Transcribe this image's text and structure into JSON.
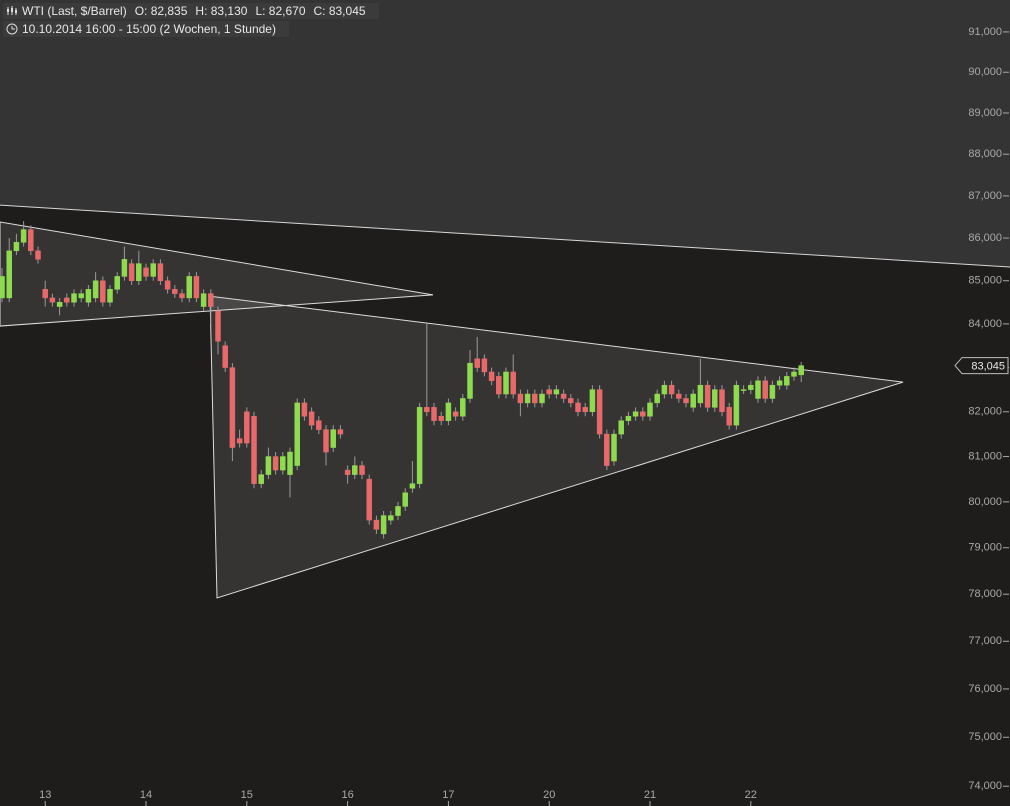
{
  "header": {
    "instrument": "WTI (Last, $/Barrel)",
    "fields": [
      "O: 82,835",
      "H: 83,130",
      "L: 82,670",
      "C: 83,045"
    ],
    "period": "10.10.2014 16:00 - 15:00 (2 Wochen, 1 Stunde)"
  },
  "chart_data": {
    "type": "candlestick",
    "log_y": true,
    "categories": [
      null,
      null,
      null,
      null,
      null,
      null,
      null,
      null,
      null,
      null,
      null,
      null,
      null,
      null,
      null,
      null,
      null,
      null,
      null,
      null,
      null,
      null,
      null,
      null,
      null,
      null,
      null,
      null,
      null,
      null,
      null,
      null,
      null,
      null,
      null,
      null,
      null,
      null,
      null,
      null,
      null,
      null,
      null,
      null,
      null,
      null,
      null,
      null,
      null,
      null,
      null,
      null,
      null,
      null,
      null,
      null,
      null,
      null,
      null,
      null,
      null,
      null,
      null,
      null,
      null,
      null,
      null,
      null,
      null,
      null,
      null,
      null,
      null,
      null,
      null,
      null,
      null,
      null,
      null,
      null,
      null,
      null,
      null,
      null,
      null,
      null,
      null,
      null,
      null,
      null,
      null,
      null,
      null,
      null,
      null,
      null,
      null,
      null,
      null,
      null,
      null,
      null,
      null,
      null,
      null,
      null,
      null,
      null,
      null,
      null,
      null,
      null
    ],
    "open": [
      84.6,
      84.6,
      85.7,
      85.9,
      86.2,
      85.7,
      84.8,
      84.6,
      84.4,
      84.6,
      84.5,
      84.6,
      84.5,
      84.6,
      85.0,
      84.5,
      84.8,
      85.1,
      85.4,
      85.0,
      85.3,
      85.1,
      85.4,
      85.0,
      84.8,
      84.7,
      84.6,
      85.1,
      84.4,
      84.7,
      84.3,
      83.5,
      83.0,
      81.4,
      82.0,
      81.9,
      80.4,
      80.6,
      81.0,
      80.7,
      80.6,
      80.8,
      82.2,
      82.0,
      81.8,
      81.6,
      81.2,
      81.6,
      80.7,
      80.6,
      80.8,
      80.5,
      79.6,
      79.3,
      79.6,
      79.7,
      79.9,
      80.3,
      80.4,
      82.1,
      82.1,
      81.9,
      81.8,
      82.0,
      81.9,
      82.3,
      83.2,
      83.2,
      82.9,
      82.8,
      82.4,
      82.9,
      82.4,
      82.2,
      82.4,
      82.2,
      82.5,
      82.4,
      82.4,
      82.3,
      82.2,
      82.1,
      82.0,
      82.5,
      81.5,
      80.9,
      81.5,
      81.8,
      81.9,
      82.0,
      81.9,
      82.2,
      82.4,
      82.6,
      82.4,
      82.3,
      82.1,
      82.2,
      82.6,
      82.1,
      82.5,
      82.1,
      81.7,
      82.5,
      82.5,
      82.3,
      82.7,
      82.3,
      82.6,
      82.6,
      82.8,
      82.835
    ],
    "high": [
      85.3,
      86.0,
      86.1,
      86.4,
      86.3,
      85.8,
      85.0,
      84.7,
      84.6,
      84.7,
      84.8,
      84.8,
      84.9,
      85.2,
      85.1,
      84.9,
      85.2,
      85.8,
      85.5,
      85.7,
      85.4,
      85.5,
      85.5,
      85.1,
      84.9,
      84.8,
      85.2,
      85.2,
      84.8,
      84.8,
      84.4,
      83.6,
      83.1,
      81.6,
      82.1,
      82.0,
      80.7,
      81.2,
      81.1,
      81.1,
      81.2,
      82.3,
      82.3,
      82.1,
      81.9,
      81.7,
      81.7,
      81.7,
      80.8,
      81.0,
      80.9,
      80.6,
      79.7,
      79.8,
      79.8,
      80.0,
      80.3,
      80.9,
      82.2,
      84.0,
      82.2,
      82.0,
      82.3,
      82.1,
      82.4,
      83.4,
      83.7,
      83.3,
      83.0,
      82.9,
      83.0,
      83.3,
      82.5,
      82.5,
      82.5,
      82.5,
      82.6,
      82.6,
      82.5,
      82.4,
      82.3,
      82.2,
      82.6,
      82.6,
      81.6,
      81.6,
      81.9,
      82.0,
      82.1,
      82.1,
      82.3,
      82.5,
      82.7,
      82.7,
      82.5,
      82.4,
      82.5,
      83.2,
      82.7,
      82.6,
      82.6,
      82.2,
      82.7,
      82.6,
      82.7,
      82.8,
      82.8,
      82.7,
      82.8,
      82.9,
      83.0,
      83.13
    ],
    "low": [
      84.5,
      84.5,
      85.6,
      85.8,
      85.6,
      85.4,
      84.4,
      84.4,
      84.2,
      84.4,
      84.4,
      84.5,
      84.4,
      84.5,
      84.4,
      84.4,
      84.7,
      85.0,
      84.9,
      84.9,
      85.0,
      85.0,
      84.9,
      84.7,
      84.6,
      84.5,
      84.5,
      84.5,
      84.3,
      84.0,
      83.3,
      82.9,
      80.9,
      81.2,
      81.2,
      80.3,
      80.3,
      80.5,
      80.6,
      80.6,
      80.1,
      80.7,
      81.8,
      81.6,
      81.5,
      80.8,
      81.1,
      81.4,
      80.4,
      80.5,
      80.5,
      79.5,
      79.3,
      79.2,
      79.5,
      79.6,
      79.8,
      80.2,
      80.3,
      81.9,
      81.7,
      81.7,
      81.7,
      81.8,
      81.8,
      82.2,
      82.9,
      82.8,
      82.6,
      82.3,
      82.3,
      82.3,
      81.9,
      82.1,
      82.1,
      82.1,
      82.3,
      82.3,
      82.2,
      82.1,
      81.9,
      81.9,
      81.9,
      81.4,
      80.7,
      80.8,
      81.4,
      81.7,
      81.8,
      81.8,
      81.8,
      82.1,
      82.3,
      82.3,
      82.2,
      82.1,
      82.0,
      82.1,
      82.0,
      82.0,
      81.9,
      81.6,
      81.6,
      82.4,
      82.4,
      82.2,
      82.2,
      82.2,
      82.5,
      82.5,
      82.7,
      82.67
    ],
    "close": [
      85.1,
      85.7,
      85.9,
      86.2,
      85.7,
      85.5,
      84.6,
      84.5,
      84.5,
      84.5,
      84.7,
      84.7,
      84.8,
      85.0,
      84.5,
      84.8,
      85.1,
      85.5,
      85.0,
      85.4,
      85.1,
      85.4,
      85.0,
      84.8,
      84.7,
      84.6,
      85.1,
      84.6,
      84.7,
      84.4,
      83.6,
      83.0,
      81.2,
      81.3,
      81.3,
      80.4,
      80.6,
      81.0,
      80.7,
      81.0,
      81.1,
      82.2,
      81.9,
      81.7,
      81.6,
      81.1,
      81.6,
      81.5,
      80.6,
      80.8,
      80.6,
      79.6,
      79.4,
      79.7,
      79.7,
      79.9,
      80.2,
      80.4,
      82.1,
      82.0,
      81.8,
      81.8,
      82.2,
      81.9,
      82.3,
      83.1,
      83.0,
      82.9,
      82.7,
      82.4,
      82.9,
      82.4,
      82.2,
      82.4,
      82.2,
      82.4,
      82.4,
      82.5,
      82.3,
      82.2,
      82.0,
      82.0,
      82.5,
      81.5,
      80.8,
      81.5,
      81.8,
      81.9,
      82.0,
      81.9,
      82.2,
      82.4,
      82.6,
      82.4,
      82.3,
      82.2,
      82.4,
      82.6,
      82.1,
      82.5,
      82.0,
      81.7,
      82.6,
      82.5,
      82.6,
      82.7,
      82.3,
      82.6,
      82.7,
      82.8,
      82.9,
      83.045
    ],
    "up_color": "#8edb4f",
    "down_color": "#e8696b",
    "xlim": [
      -0.28,
      140
    ],
    "xticks": [
      {
        "value": 6,
        "label": "13"
      },
      {
        "value": 20,
        "label": "14"
      },
      {
        "value": 34,
        "label": "15"
      },
      {
        "value": 48,
        "label": "16"
      },
      {
        "value": 62,
        "label": "17"
      },
      {
        "value": 76,
        "label": "20"
      },
      {
        "value": 90,
        "label": "21"
      },
      {
        "value": 104,
        "label": "22"
      }
    ],
    "ylim": [
      73.6,
      91.8
    ],
    "yticks": [
      {
        "value": 74,
        "label": "74,000"
      },
      {
        "value": 75,
        "label": "75,000"
      },
      {
        "value": 76,
        "label": "76,000"
      },
      {
        "value": 77,
        "label": "77,000"
      },
      {
        "value": 78,
        "label": "78,000"
      },
      {
        "value": 79,
        "label": "79,000"
      },
      {
        "value": 80,
        "label": "80,000"
      },
      {
        "value": 81,
        "label": "81,000"
      },
      {
        "value": 82,
        "label": "82,000"
      },
      {
        "value": 83,
        "label": "83,000"
      },
      {
        "value": 84,
        "label": "84,000"
      },
      {
        "value": 85,
        "label": "85,000"
      },
      {
        "value": 86,
        "label": "86,000"
      },
      {
        "value": 87,
        "label": "87,000"
      },
      {
        "value": 88,
        "label": "88,000"
      },
      {
        "value": 89,
        "label": "89,000"
      },
      {
        "value": 90,
        "label": "90,000"
      },
      {
        "value": 91,
        "label": "91,000"
      }
    ],
    "last_price": {
      "value": 83.045,
      "label": "83,045"
    },
    "drawings": [
      {
        "type": "shade-above",
        "x": [
          -0.28,
          140
        ],
        "y": [
          86.78,
          85.32
        ]
      },
      {
        "type": "triangle",
        "x": [
          -0.28,
          59.86,
          -0.28
        ],
        "y": [
          86.38,
          84.67,
          83.95
        ]
      },
      {
        "type": "triangle",
        "x": [
          28.89,
          125.14,
          29.86
        ],
        "y": [
          84.64,
          82.67,
          77.92
        ]
      }
    ]
  }
}
